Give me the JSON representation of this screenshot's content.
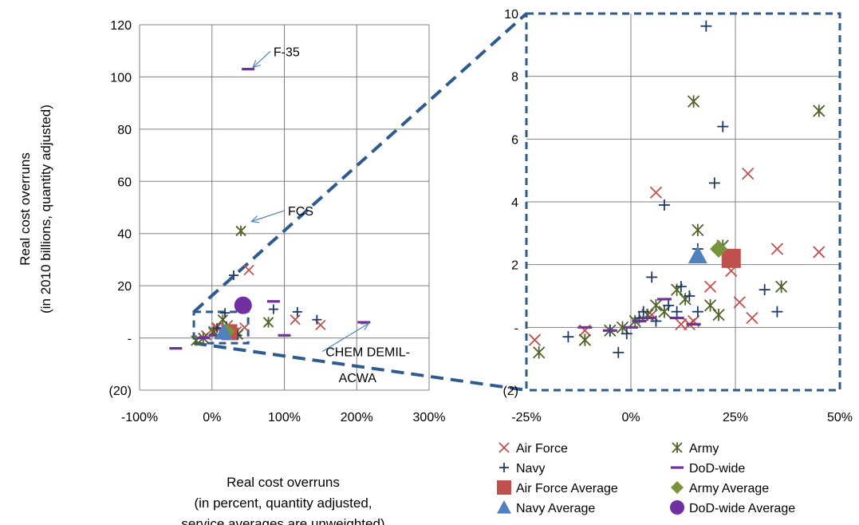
{
  "chart_data": {
    "type": "scatter",
    "colors": {
      "Air Force": "#c0504d",
      "Army": "#4f6228",
      "Navy": "#1f3864",
      "DoD-wide": "#7030a0",
      "Air Force Average": "#c0504d",
      "Army Average": "#77933c",
      "Navy Average": "#4f81bd",
      "DoD-wide Average": "#7030a0",
      "zoom_box": "#2e5b8f",
      "gridline": "#808080"
    },
    "markers": {
      "Air Force": "x",
      "Army": "asterisk",
      "Navy": "plus",
      "DoD-wide": "dash",
      "Air Force Average": "square",
      "Army Average": "diamond",
      "Navy Average": "triangle",
      "DoD-wide Average": "circle"
    },
    "legend_order": [
      "Air Force",
      "Army",
      "Navy",
      "DoD-wide",
      "Air Force Average",
      "Army Average",
      "Navy Average",
      "DoD-wide Average"
    ],
    "main": {
      "xlabel_lines": [
        "Real cost overruns",
        "(in percent, quantity adjusted,",
        "service averages are unweighted)"
      ],
      "ylabel_lines": [
        "Real cost overruns",
        "(in 2010 billions, quantity adjusted)"
      ],
      "xlim": [
        -100,
        300
      ],
      "ylim": [
        -20,
        120
      ],
      "xticks": [
        -100,
        0,
        100,
        200,
        300
      ],
      "xtick_labels": [
        "-100%",
        "0%",
        "100%",
        "200%",
        "300%"
      ],
      "yticks": [
        -20,
        0,
        20,
        40,
        60,
        80,
        100,
        120
      ],
      "ytick_labels": [
        "(20)",
        "-",
        "20",
        "40",
        "60",
        "80",
        "100",
        "120"
      ],
      "zoom_region": {
        "x": [
          -25,
          50
        ],
        "y": [
          -2,
          10
        ]
      },
      "annotations": [
        {
          "text": "F-35",
          "point": [
            50,
            103
          ],
          "text_at": [
            85,
            108
          ]
        },
        {
          "text": "FCS",
          "point": [
            48,
            44
          ],
          "text_at": [
            105,
            47
          ]
        },
        {
          "text": "CHEM DEMIL-",
          "point": [
            210,
            5
          ],
          "text_at": [
            157,
            -7
          ]
        },
        {
          "text": "ACWA",
          "text_at": [
            175,
            -17
          ]
        }
      ],
      "series": [
        {
          "name": "Air Force",
          "points": [
            [
              51,
              26
            ],
            [
              115,
              7
            ],
            [
              150,
              5
            ],
            [
              -8,
              1
            ],
            [
              2,
              2
            ],
            [
              30,
              2
            ],
            [
              45,
              4
            ],
            [
              28,
              3
            ],
            [
              6,
              4
            ],
            [
              15,
              2.5
            ],
            [
              22,
              4.9
            ],
            [
              34,
              2.5
            ],
            [
              7,
              4
            ]
          ]
        },
        {
          "name": "Army",
          "points": [
            [
              40,
              41
            ],
            [
              78,
              6
            ],
            [
              15,
              7
            ],
            [
              -22,
              -1
            ],
            [
              -12,
              0
            ],
            [
              2,
              2.6
            ],
            [
              36,
              1.3
            ]
          ]
        },
        {
          "name": "Navy",
          "points": [
            [
              30,
              24
            ],
            [
              18,
              9.6
            ],
            [
              145,
              7
            ],
            [
              118,
              10
            ],
            [
              85,
              11
            ],
            [
              20,
              4.5
            ],
            [
              7,
              3.8
            ],
            [
              16,
              2
            ],
            [
              35,
              1
            ]
          ]
        },
        {
          "name": "DoD-wide",
          "points": [
            [
              50,
              103
            ],
            [
              210,
              6
            ],
            [
              85,
              14
            ],
            [
              100,
              1
            ],
            [
              -50,
              -4
            ],
            [
              -12,
              0
            ],
            [
              5,
              1
            ],
            [
              13,
              0
            ]
          ]
        },
        {
          "name": "Air Force Average",
          "points": [
            [
              24,
              2.2
            ]
          ]
        },
        {
          "name": "Army Average",
          "points": [
            [
              21,
              2.5
            ]
          ]
        },
        {
          "name": "Navy Average",
          "points": [
            [
              16,
              2.3
            ]
          ]
        },
        {
          "name": "DoD-wide Average",
          "points": [
            [
              43,
              12.5
            ]
          ]
        }
      ]
    },
    "zoom": {
      "xlim": [
        -25,
        50
      ],
      "ylim": [
        -2,
        10
      ],
      "xticks": [
        -25,
        0,
        25,
        50
      ],
      "xtick_labels": [
        "-25%",
        "0%",
        "25%",
        "50%"
      ],
      "yticks": [
        -2,
        0,
        2,
        4,
        6,
        8,
        10
      ],
      "ytick_labels": [
        "(2)",
        "-",
        "2",
        "4",
        "6",
        "8",
        "10"
      ],
      "series": [
        {
          "name": "Air Force",
          "points": [
            [
              -23,
              -0.4
            ],
            [
              -11,
              -0.1
            ],
            [
              5,
              0.4
            ],
            [
              6,
              4.3
            ],
            [
              12,
              0.1
            ],
            [
              14,
              0.1
            ],
            [
              15,
              0.2
            ],
            [
              19,
              1.3
            ],
            [
              24,
              1.8
            ],
            [
              26,
              0.8
            ],
            [
              28,
              4.9
            ],
            [
              29,
              0.3
            ],
            [
              35,
              2.5
            ],
            [
              45,
              2.4
            ]
          ]
        },
        {
          "name": "Army",
          "points": [
            [
              -22,
              -0.8
            ],
            [
              -11,
              -0.4
            ],
            [
              -5,
              -0.1
            ],
            [
              -2,
              0
            ],
            [
              1,
              0.2
            ],
            [
              4,
              0.4
            ],
            [
              6,
              0.7
            ],
            [
              8,
              0.5
            ],
            [
              11,
              1.2
            ],
            [
              13,
              0.9
            ],
            [
              15,
              7.2
            ],
            [
              16,
              3.1
            ],
            [
              19,
              0.7
            ],
            [
              22,
              2.6
            ],
            [
              21,
              0.4
            ],
            [
              36,
              1.3
            ],
            [
              45,
              6.9
            ]
          ]
        },
        {
          "name": "Navy",
          "points": [
            [
              -15,
              -0.3
            ],
            [
              -5,
              -0.1
            ],
            [
              -3,
              -0.8
            ],
            [
              -1,
              -0.2
            ],
            [
              2,
              0.3
            ],
            [
              3,
              0.5
            ],
            [
              5,
              1.6
            ],
            [
              6,
              0.2
            ],
            [
              8,
              3.9
            ],
            [
              9,
              0.7
            ],
            [
              11,
              0.5
            ],
            [
              12,
              1.3
            ],
            [
              14,
              1.0
            ],
            [
              16,
              0.5
            ],
            [
              16,
              2.5
            ],
            [
              18,
              9.6
            ],
            [
              20,
              4.6
            ],
            [
              22,
              6.4
            ],
            [
              32,
              1.2
            ],
            [
              35,
              0.5
            ]
          ]
        },
        {
          "name": "DoD-wide",
          "points": [
            [
              -11,
              0
            ],
            [
              -5,
              -0.1
            ],
            [
              0,
              0
            ],
            [
              2,
              0.2
            ],
            [
              4,
              0.3
            ],
            [
              8,
              0.9
            ],
            [
              11,
              0.3
            ],
            [
              15,
              0.1
            ]
          ]
        },
        {
          "name": "Air Force Average",
          "points": [
            [
              24,
              2.2
            ]
          ]
        },
        {
          "name": "Army Average",
          "points": [
            [
              21,
              2.5
            ]
          ]
        },
        {
          "name": "Navy Average",
          "points": [
            [
              16,
              2.3
            ]
          ]
        }
      ]
    }
  }
}
